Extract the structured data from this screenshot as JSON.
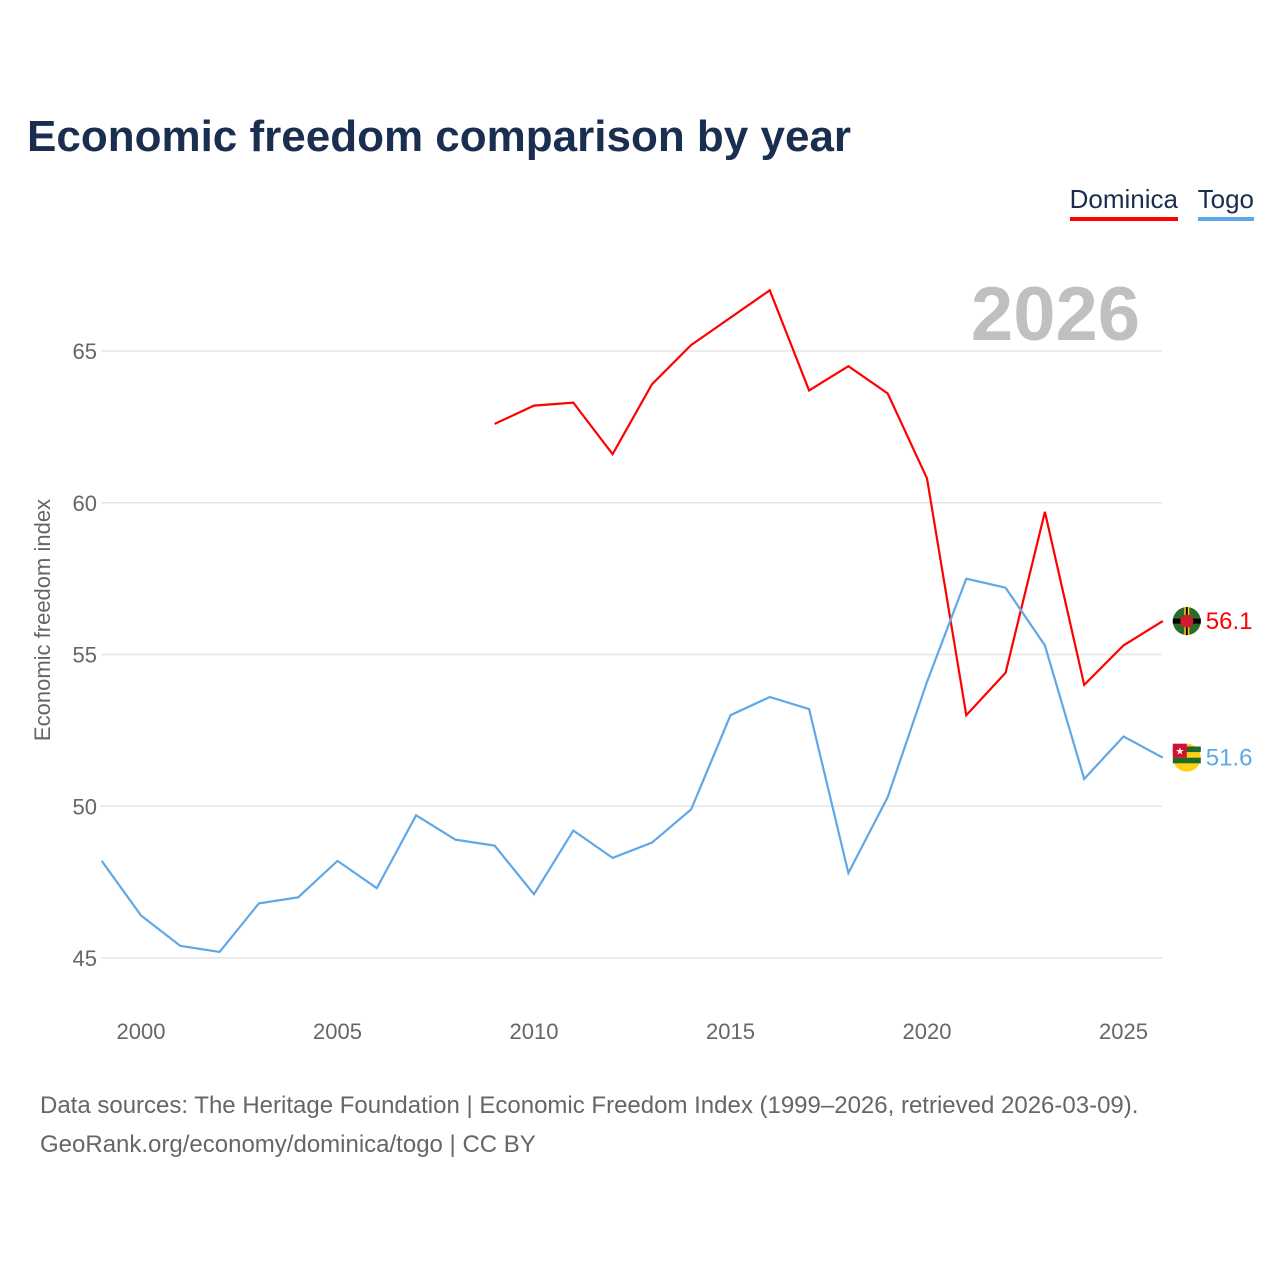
{
  "chart_data": {
    "type": "line",
    "title": "Economic freedom comparison by year",
    "ylabel": "Economic freedom index",
    "xlabel": "",
    "watermark_year": "2026",
    "xlim": [
      1999,
      2026
    ],
    "ylim": [
      45,
      67
    ],
    "yticks": [
      45,
      50,
      55,
      60,
      65
    ],
    "xticks": [
      2000,
      2005,
      2010,
      2015,
      2020,
      2025
    ],
    "grid": true,
    "legend_position": "top-right",
    "series": [
      {
        "name": "Dominica",
        "color": "#ff0000",
        "end_label": "56.1",
        "x": [
          2009,
          2010,
          2011,
          2012,
          2013,
          2014,
          2015,
          2016,
          2017,
          2018,
          2019,
          2020,
          2021,
          2022,
          2023,
          2024,
          2025,
          2026
        ],
        "values": [
          62.6,
          63.2,
          63.3,
          61.6,
          63.9,
          65.2,
          66.1,
          67.0,
          63.7,
          64.5,
          63.6,
          60.8,
          53.0,
          54.4,
          59.7,
          54.0,
          55.3,
          56.1
        ]
      },
      {
        "name": "Togo",
        "color": "#5fa8e8",
        "end_label": "51.6",
        "x": [
          1999,
          2000,
          2001,
          2002,
          2003,
          2004,
          2005,
          2006,
          2007,
          2008,
          2009,
          2010,
          2011,
          2012,
          2013,
          2014,
          2015,
          2016,
          2017,
          2018,
          2019,
          2020,
          2021,
          2022,
          2023,
          2024,
          2025,
          2026
        ],
        "values": [
          48.2,
          46.4,
          45.4,
          45.2,
          46.8,
          47.0,
          48.2,
          47.3,
          49.7,
          48.9,
          48.7,
          47.1,
          49.2,
          48.3,
          48.8,
          49.9,
          53.0,
          53.6,
          53.2,
          47.8,
          50.3,
          54.1,
          57.5,
          57.2,
          55.3,
          50.9,
          52.3,
          51.6
        ]
      }
    ]
  },
  "footer": {
    "line1": "Data sources: The Heritage Foundation | Economic Freedom Index (1999–2026, retrieved 2026-03-09).",
    "line2": "GeoRank.org/economy/dominica/togo | CC BY"
  }
}
